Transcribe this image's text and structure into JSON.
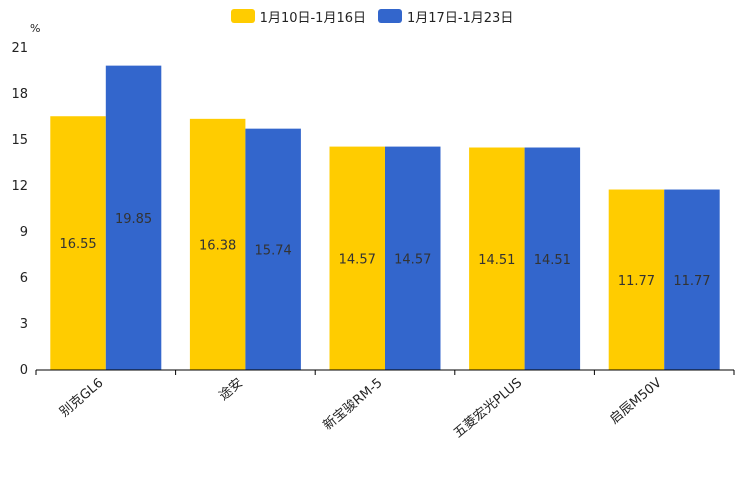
{
  "chart_data": {
    "type": "bar",
    "title": "",
    "unit": "%",
    "xlabel": "",
    "ylabel": "%",
    "ylim": [
      0,
      21
    ],
    "yticks": [
      0,
      3,
      6,
      9,
      12,
      15,
      18,
      21
    ],
    "categories": [
      "别克GL6",
      "途安",
      "新宝骏RM-5",
      "五菱宏光PLUS",
      "启辰M50V"
    ],
    "series": [
      {
        "name": "1月10日-1月16日",
        "color": "#FFCC00",
        "values": [
          16.55,
          16.38,
          14.57,
          14.51,
          11.77
        ]
      },
      {
        "name": "1月17日-1月23日",
        "color": "#3366CC",
        "values": [
          19.85,
          15.74,
          14.57,
          14.51,
          11.77
        ]
      }
    ],
    "legend_position": "top-center",
    "grid": false
  }
}
